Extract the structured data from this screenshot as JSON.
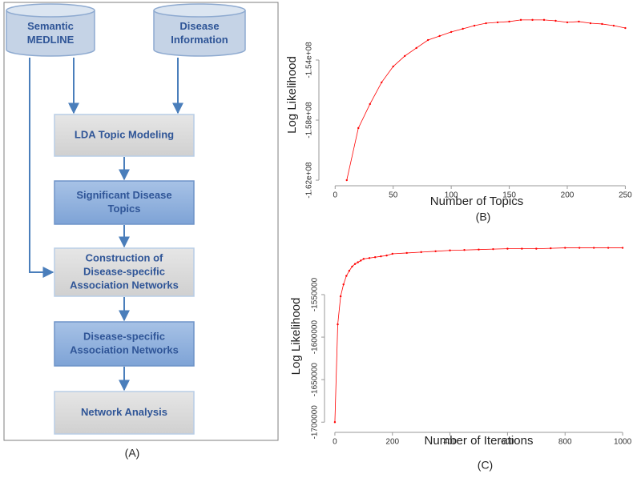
{
  "diagram": {
    "label": "(A)",
    "sources": [
      {
        "lines": [
          "Semantic",
          "MEDLINE"
        ]
      },
      {
        "lines": [
          "Disease",
          "Information"
        ]
      }
    ],
    "steps": [
      {
        "lines": [
          "LDA Topic Modeling"
        ],
        "style": "gray"
      },
      {
        "lines": [
          "Significant Disease",
          "Topics"
        ],
        "style": "blue"
      },
      {
        "lines": [
          "Construction of",
          "Disease-specific",
          "Association Networks"
        ],
        "style": "gray"
      },
      {
        "lines": [
          "Disease-specific",
          "Association Networks"
        ],
        "style": "blue"
      },
      {
        "lines": [
          "Network Analysis"
        ],
        "style": "gray"
      }
    ]
  },
  "chart_data": [
    {
      "type": "line",
      "panel_label": "(B)",
      "xlabel": "Number of Topics",
      "ylabel": "Log Likelihood",
      "x": [
        10,
        20,
        30,
        40,
        50,
        60,
        70,
        80,
        90,
        100,
        110,
        120,
        130,
        140,
        150,
        160,
        170,
        180,
        190,
        200,
        210,
        220,
        230,
        240,
        250
      ],
      "series": [
        {
          "color": "#ff0000",
          "values": [
            -162000000,
            -158530000,
            -156930000,
            -155490000,
            -154430000,
            -153730000,
            -153200000,
            -152670000,
            -152400000,
            -152130000,
            -151920000,
            -151710000,
            -151550000,
            -151490000,
            -151440000,
            -151330000,
            -151330000,
            -151330000,
            -151390000,
            -151490000,
            -151440000,
            -151550000,
            -151600000,
            -151710000,
            -151870000
          ]
        }
      ],
      "xlim": [
        -14,
        258
      ],
      "ylim": [
        -162370000,
        -150270000
      ],
      "xticks": [
        0,
        50,
        100,
        150,
        200,
        250
      ],
      "yticks": [
        {
          "value": -162000000,
          "label": "-1.62e+08"
        },
        {
          "value": -158000000,
          "label": "-1.58e+08"
        },
        {
          "value": -154000000,
          "label": "-1.54e+08"
        }
      ]
    },
    {
      "type": "line",
      "panel_label": "(C)",
      "xlabel": "Number of Iterations",
      "ylabel": "Log Likelihood",
      "x": [
        0,
        10,
        20,
        30,
        40,
        50,
        60,
        70,
        80,
        90,
        100,
        120,
        140,
        160,
        180,
        200,
        250,
        300,
        350,
        400,
        450,
        500,
        550,
        600,
        650,
        700,
        750,
        800,
        850,
        900,
        950,
        1000
      ],
      "series": [
        {
          "color": "#ff0000",
          "values": [
            -1700000,
            -1585000,
            -1552000,
            -1538000,
            -1528000,
            -1522000,
            -1517000,
            -1514000,
            -1512000,
            -1510000,
            -1508000,
            -1507000,
            -1506000,
            -1505000,
            -1504000,
            -1502000,
            -1501000,
            -1500000,
            -1499000,
            -1498000,
            -1497500,
            -1497000,
            -1496500,
            -1496000,
            -1496000,
            -1496000,
            -1495500,
            -1495000,
            -1495000,
            -1495000,
            -1495000,
            -1495000
          ]
        }
      ],
      "xlim": [
        -36,
        1036
      ],
      "ylim": [
        -1712000,
        -1486000
      ],
      "xticks": [
        0,
        200,
        400,
        600,
        800,
        1000
      ],
      "yticks": [
        -1700000,
        -1650000,
        -1600000,
        -1550000
      ]
    }
  ]
}
